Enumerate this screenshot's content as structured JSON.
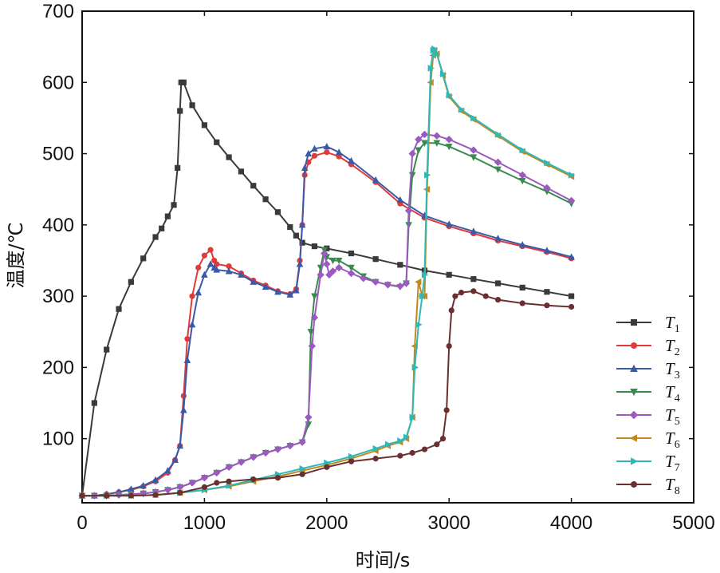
{
  "chart_data": {
    "type": "line",
    "title": "",
    "xlabel": "时间/s",
    "ylabel": "温度/℃",
    "xlim": [
      0,
      5000
    ],
    "ylim": [
      10,
      700
    ],
    "xticks": [
      0,
      1000,
      2000,
      3000,
      4000,
      5000
    ],
    "yticks": [
      100,
      200,
      300,
      400,
      500,
      600,
      700
    ],
    "legend_position": "bottom-right",
    "series": [
      {
        "name": "T1",
        "color": "#3a3a3a",
        "marker": "square",
        "x": [
          0,
          100,
          200,
          300,
          400,
          500,
          600,
          650,
          700,
          750,
          780,
          800,
          810,
          830,
          900,
          1000,
          1100,
          1200,
          1300,
          1400,
          1500,
          1600,
          1700,
          1750,
          1800,
          1900,
          2000,
          2200,
          2400,
          2600,
          2800,
          3000,
          3200,
          3400,
          3600,
          3800,
          4000
        ],
        "y": [
          20,
          150,
          225,
          282,
          320,
          353,
          383,
          395,
          412,
          428,
          480,
          560,
          600,
          600,
          568,
          540,
          516,
          495,
          475,
          455,
          436,
          418,
          397,
          385,
          375,
          370,
          367,
          360,
          352,
          344,
          336,
          330,
          324,
          318,
          312,
          306,
          300
        ]
      },
      {
        "name": "T2",
        "color": "#e03a3a",
        "marker": "circle",
        "x": [
          0,
          100,
          200,
          300,
          400,
          500,
          600,
          700,
          760,
          800,
          830,
          860,
          900,
          950,
          1000,
          1050,
          1080,
          1100,
          1200,
          1300,
          1400,
          1500,
          1600,
          1700,
          1750,
          1780,
          1800,
          1820,
          1850,
          1900,
          2000,
          2100,
          2200,
          2400,
          2600,
          2800,
          3000,
          3200,
          3400,
          3600,
          3800,
          4000
        ],
        "y": [
          20,
          20,
          22,
          25,
          28,
          33,
          40,
          52,
          70,
          90,
          160,
          240,
          300,
          340,
          357,
          365,
          350,
          345,
          342,
          332,
          322,
          315,
          307,
          303,
          310,
          350,
          400,
          470,
          488,
          497,
          502,
          496,
          485,
          460,
          430,
          410,
          398,
          388,
          378,
          370,
          362,
          353
        ]
      },
      {
        "name": "T3",
        "color": "#3a5aa8",
        "marker": "triangle-up",
        "x": [
          0,
          100,
          200,
          300,
          400,
          500,
          600,
          700,
          760,
          800,
          830,
          860,
          900,
          950,
          1000,
          1050,
          1080,
          1100,
          1200,
          1300,
          1400,
          1500,
          1600,
          1700,
          1750,
          1780,
          1800,
          1820,
          1850,
          1900,
          2000,
          2100,
          2200,
          2400,
          2600,
          2800,
          3000,
          3200,
          3400,
          3600,
          3800,
          4000
        ],
        "y": [
          20,
          20,
          22,
          25,
          29,
          34,
          42,
          55,
          70,
          90,
          140,
          210,
          260,
          305,
          330,
          345,
          340,
          337,
          335,
          330,
          320,
          313,
          306,
          302,
          308,
          345,
          400,
          480,
          500,
          507,
          510,
          502,
          490,
          463,
          435,
          413,
          401,
          391,
          381,
          372,
          364,
          355
        ]
      },
      {
        "name": "T4",
        "color": "#3a8a50",
        "marker": "triangle-down",
        "x": [
          0,
          100,
          200,
          300,
          400,
          500,
          600,
          700,
          800,
          900,
          1000,
          1100,
          1200,
          1300,
          1400,
          1500,
          1600,
          1700,
          1800,
          1850,
          1870,
          1900,
          1950,
          1980,
          2000,
          2050,
          2100,
          2200,
          2300,
          2400,
          2500,
          2600,
          2650,
          2670,
          2700,
          2750,
          2800,
          2900,
          3000,
          3200,
          3400,
          3600,
          3800,
          4000
        ],
        "y": [
          20,
          20,
          20,
          21,
          22,
          23,
          25,
          28,
          32,
          38,
          45,
          52,
          60,
          67,
          74,
          80,
          85,
          90,
          95,
          120,
          250,
          300,
          340,
          365,
          355,
          350,
          350,
          340,
          328,
          320,
          316,
          313,
          318,
          400,
          470,
          505,
          515,
          515,
          510,
          495,
          478,
          462,
          447,
          430
        ]
      },
      {
        "name": "T5",
        "color": "#9a5ac0",
        "marker": "diamond",
        "x": [
          0,
          100,
          200,
          300,
          400,
          500,
          600,
          700,
          800,
          900,
          1000,
          1100,
          1200,
          1300,
          1400,
          1500,
          1600,
          1700,
          1800,
          1850,
          1880,
          1900,
          1950,
          1980,
          2000,
          2020,
          2050,
          2100,
          2200,
          2300,
          2400,
          2500,
          2600,
          2650,
          2670,
          2700,
          2750,
          2800,
          2900,
          3000,
          3200,
          3400,
          3600,
          3800,
          4000
        ],
        "y": [
          20,
          20,
          20,
          21,
          22,
          23,
          25,
          28,
          32,
          38,
          45,
          52,
          60,
          67,
          74,
          80,
          85,
          90,
          95,
          130,
          230,
          270,
          330,
          360,
          345,
          330,
          335,
          340,
          332,
          325,
          320,
          316,
          314,
          318,
          420,
          500,
          520,
          527,
          525,
          520,
          505,
          488,
          470,
          452,
          434
        ]
      },
      {
        "name": "T6",
        "color": "#c08a20",
        "marker": "triangle-left",
        "x": [
          0,
          200,
          400,
          600,
          800,
          1000,
          1200,
          1400,
          1600,
          1800,
          2000,
          2200,
          2400,
          2500,
          2600,
          2650,
          2700,
          2720,
          2750,
          2780,
          2800,
          2820,
          2850,
          2870,
          2880,
          2900,
          2950,
          3000,
          3100,
          3200,
          3400,
          3600,
          3800,
          4000
        ],
        "y": [
          20,
          20,
          20,
          21,
          24,
          28,
          33,
          40,
          47,
          55,
          63,
          72,
          83,
          90,
          95,
          100,
          130,
          230,
          320,
          300,
          300,
          450,
          600,
          638,
          645,
          640,
          610,
          580,
          560,
          548,
          525,
          503,
          485,
          468
        ]
      },
      {
        "name": "T7",
        "color": "#30b8b8",
        "marker": "triangle-right",
        "x": [
          0,
          200,
          400,
          600,
          800,
          1000,
          1200,
          1400,
          1600,
          1800,
          2000,
          2200,
          2400,
          2500,
          2600,
          2650,
          2700,
          2720,
          2750,
          2780,
          2800,
          2820,
          2850,
          2870,
          2880,
          2900,
          2950,
          3000,
          3100,
          3200,
          3400,
          3600,
          3800,
          4000
        ],
        "y": [
          20,
          20,
          20,
          21,
          24,
          28,
          34,
          42,
          50,
          58,
          66,
          75,
          86,
          92,
          97,
          102,
          130,
          200,
          260,
          300,
          330,
          470,
          620,
          645,
          647,
          640,
          612,
          582,
          562,
          550,
          527,
          505,
          487,
          470
        ]
      },
      {
        "name": "T8",
        "color": "#6a3030",
        "marker": "circle",
        "x": [
          0,
          200,
          400,
          600,
          800,
          1000,
          1100,
          1200,
          1400,
          1600,
          1800,
          2000,
          2200,
          2400,
          2600,
          2700,
          2800,
          2900,
          2950,
          2980,
          3000,
          3020,
          3050,
          3100,
          3200,
          3300,
          3400,
          3600,
          3800,
          4000
        ],
        "y": [
          20,
          20,
          20,
          21,
          24,
          32,
          38,
          40,
          43,
          45,
          50,
          60,
          68,
          72,
          76,
          80,
          85,
          92,
          100,
          140,
          230,
          280,
          300,
          305,
          307,
          300,
          295,
          290,
          287,
          285
        ]
      }
    ]
  }
}
